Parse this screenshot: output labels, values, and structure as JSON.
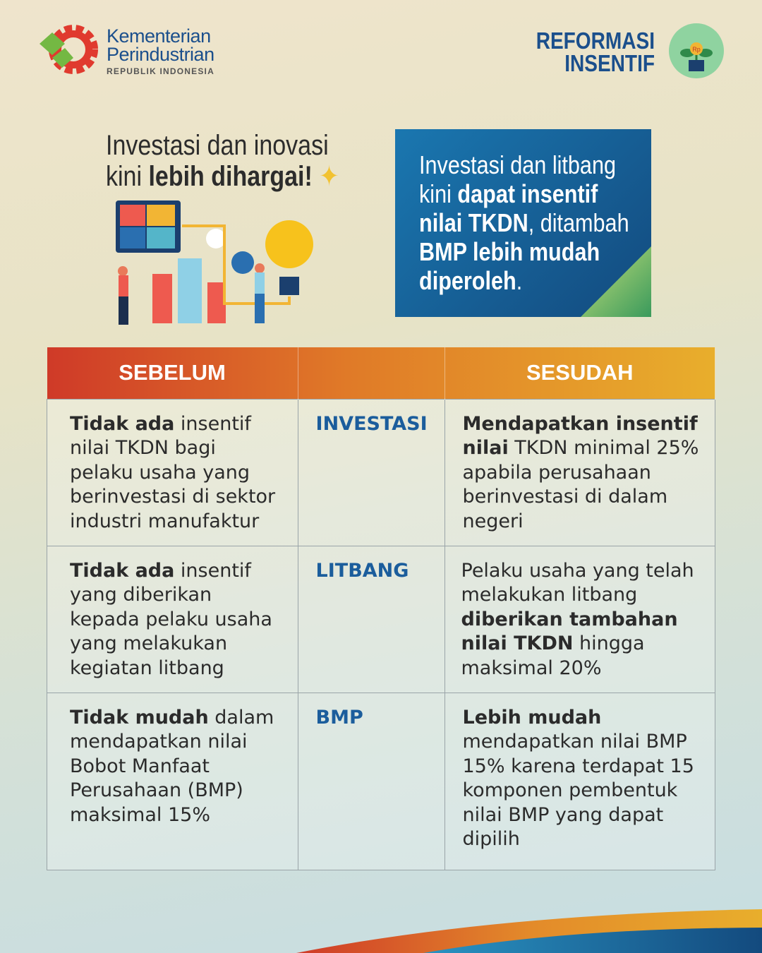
{
  "header": {
    "brand_line1": "Kementerian",
    "brand_line2": "Perindustrian",
    "brand_line3": "REPUBLIK INDONESIA",
    "campaign_line1": "REFORMASI",
    "campaign_line2": "INSENTIF",
    "badge_text": "Rp"
  },
  "headline": {
    "line1": "Investasi dan inovasi",
    "line2_normal": "kini ",
    "line2_bold": "lebih dihargai!"
  },
  "callout": {
    "l1": "Investasi dan litbang",
    "l2a": "kini ",
    "l2b": "dapat insentif",
    "l3a": "nilai TKDN",
    ", ": "",
    "l3b": ", ditambah",
    "l4": "BMP lebih mudah",
    "l5a": "diperoleh",
    "l5b": "."
  },
  "table": {
    "headers": [
      "SEBELUM",
      "",
      "SESUDAH"
    ],
    "rows": [
      {
        "before_bold": "Tidak ada",
        "before": " insentif nilai TKDN bagi pelaku usaha yang berinvestasi di sektor industri manufaktur",
        "category": "INVESTASI",
        "after_bold": "Mendapatkan insentif nilai",
        "after": " TKDN minimal 25% apabila perusahaan berinvestasi di dalam negeri"
      },
      {
        "before_bold": "Tidak ada",
        "before": " insentif yang diberikan kepada pelaku usaha yang melakukan kegiatan litbang",
        "category": "LITBANG",
        "after_pre": "Pelaku usaha yang telah melakukan litbang ",
        "after_bold": "diberikan tambahan nilai TKDN",
        "after": " hingga maksimal 20%"
      },
      {
        "before_bold": "Tidak mudah",
        "before": " dalam mendapatkan nilai Bobot Manfaat Perusahaan (BMP) maksimal 15%",
        "category": "BMP",
        "after_bold": "Lebih mudah",
        "after": " mendapatkan nilai BMP 15% karena terdapat 15 komponen pembentuk nilai BMP yang dapat dipilih"
      }
    ]
  },
  "colors": {
    "brand_blue": "#1b4f8c",
    "header_red": "#cf3a28",
    "header_yellow": "#e8ae2c",
    "category_blue": "#1b5d9c"
  }
}
